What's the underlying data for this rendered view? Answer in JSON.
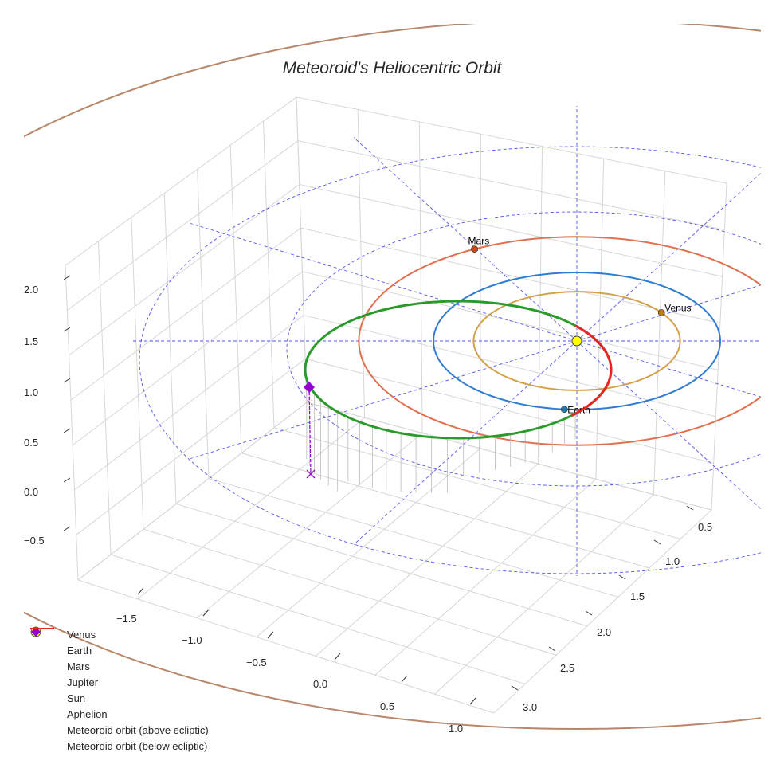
{
  "chart_data": {
    "type": "line3d",
    "title": "Meteoroid's Heliocentric Orbit",
    "x_ticks": [
      "−1.5",
      "−1.0",
      "−0.5",
      "0.0",
      "0.5",
      "1.0"
    ],
    "y_ticks": [
      "0.5",
      "1.0",
      "1.5",
      "2.0",
      "2.5",
      "3.0"
    ],
    "z_ticks": [
      "2.0",
      "1.5",
      "1.0",
      "0.5",
      "0.0",
      "−0.5"
    ],
    "orbits": [
      {
        "name": "Venus",
        "a_au": 0.72,
        "color": "#d4a04a",
        "marker_color": "#c07d10",
        "angle_deg": 35
      },
      {
        "name": "Earth",
        "a_au": 1.0,
        "color": "#2f7dd0",
        "marker_color": "#1f77b4",
        "angle_deg": -95
      },
      {
        "name": "Mars",
        "a_au": 1.52,
        "color": "#e07050",
        "marker_color": "#cc4a10",
        "angle_deg": 118
      },
      {
        "name": "Jupiter",
        "a_au": 5.2,
        "color": "#b8876a",
        "marker_color": "#a0522d"
      }
    ],
    "meteoroid": {
      "above_color": "#2a9a2a",
      "below_color": "#ee2222",
      "below_range_deg": [
        -40,
        42
      ]
    },
    "aphelion_color": "#9400d3",
    "sun_color": "#ffff00",
    "legend": [
      {
        "label": "Venus",
        "type": "dot",
        "color": "#c07d10"
      },
      {
        "label": "Earth",
        "type": "dot",
        "color": "#1f77b4"
      },
      {
        "label": "Mars",
        "type": "dot",
        "color": "#cc4a10"
      },
      {
        "label": "Jupiter",
        "type": "dot",
        "color": "#a0522d"
      },
      {
        "label": "Sun",
        "type": "sun",
        "color": "#ffff00"
      },
      {
        "label": "Aphelion",
        "type": "diamond",
        "color": "#9400d3"
      },
      {
        "label": "Meteoroid orbit (above ecliptic)",
        "type": "line",
        "color": "#1a8a1a"
      },
      {
        "label": "Meteoroid orbit (below ecliptic)",
        "type": "line",
        "color": "#ee2222"
      }
    ],
    "legend_position": "bottom-left"
  }
}
